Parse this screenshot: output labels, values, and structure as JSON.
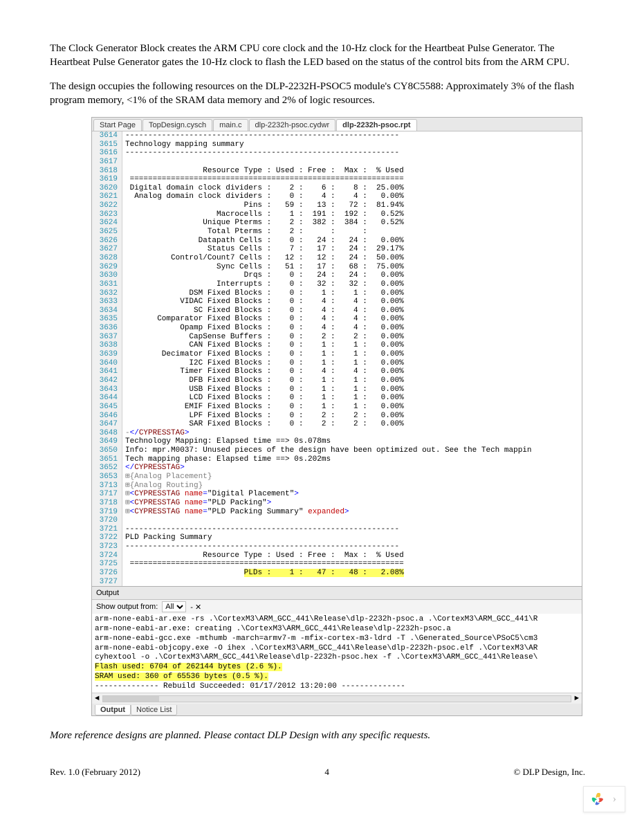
{
  "paragraph1": "The Clock Generator Block creates the ARM CPU core clock and the 10-Hz clock for the Heartbeat Pulse Generator.  The Heartbeat Pulse Generator gates the 10-Hz clock to flash the LED based on the status of the control bits from the ARM CPU.",
  "paragraph2": "The design occupies the following resources on the DLP-2232H-PSOC5 module's CY8C5588: Approximately 3% of the flash program memory, <1% of the SRAM data memory and 2% of logic resources.",
  "tabs": [
    "Start Page",
    "TopDesign.cysch",
    "main.c",
    "dlp-2232h-psoc.cydwr",
    "dlp-2232h-psoc.rpt"
  ],
  "active_tab_index": 4,
  "code_lines": [
    {
      "n": "3614",
      "t": "------------------------------------------------------------",
      "cls": ""
    },
    {
      "n": "3615",
      "t": "Technology mapping summary",
      "cls": ""
    },
    {
      "n": "3616",
      "t": "------------------------------------------------------------",
      "cls": ""
    },
    {
      "n": "3617",
      "t": "",
      "cls": ""
    },
    {
      "n": "3618",
      "t": "                 Resource Type : Used : Free :  Max :  % Used",
      "cls": ""
    },
    {
      "n": "3619",
      "t": " ============================================================",
      "cls": ""
    },
    {
      "n": "3620",
      "t": " Digital domain clock dividers :    2 :    6 :    8 :  25.00%",
      "cls": ""
    },
    {
      "n": "3621",
      "t": "  Analog domain clock dividers :    0 :    4 :    4 :   0.00%",
      "cls": ""
    },
    {
      "n": "3622",
      "t": "                          Pins :   59 :   13 :   72 :  81.94%",
      "cls": ""
    },
    {
      "n": "3623",
      "t": "                    Macrocells :    1 :  191 :  192 :   0.52%",
      "cls": ""
    },
    {
      "n": "3624",
      "t": "                 Unique Pterms :    2 :  382 :  384 :   0.52%",
      "cls": ""
    },
    {
      "n": "3625",
      "t": "                  Total Pterms :    2 :      :      :",
      "cls": ""
    },
    {
      "n": "3626",
      "t": "                Datapath Cells :    0 :   24 :   24 :   0.00%",
      "cls": ""
    },
    {
      "n": "3627",
      "t": "                  Status Cells :    7 :   17 :   24 :  29.17%",
      "cls": ""
    },
    {
      "n": "3628",
      "t": "          Control/Count7 Cells :   12 :   12 :   24 :  50.00%",
      "cls": ""
    },
    {
      "n": "3629",
      "t": "                    Sync Cells :   51 :   17 :   68 :  75.00%",
      "cls": ""
    },
    {
      "n": "3630",
      "t": "                          Drqs :    0 :   24 :   24 :   0.00%",
      "cls": ""
    },
    {
      "n": "3631",
      "t": "                    Interrupts :    0 :   32 :   32 :   0.00%",
      "cls": ""
    },
    {
      "n": "3632",
      "t": "              DSM Fixed Blocks :    0 :    1 :    1 :   0.00%",
      "cls": ""
    },
    {
      "n": "3633",
      "t": "            VIDAC Fixed Blocks :    0 :    4 :    4 :   0.00%",
      "cls": ""
    },
    {
      "n": "3634",
      "t": "               SC Fixed Blocks :    0 :    4 :    4 :   0.00%",
      "cls": ""
    },
    {
      "n": "3635",
      "t": "       Comparator Fixed Blocks :    0 :    4 :    4 :   0.00%",
      "cls": ""
    },
    {
      "n": "3636",
      "t": "            Opamp Fixed Blocks :    0 :    4 :    4 :   0.00%",
      "cls": ""
    },
    {
      "n": "3637",
      "t": "              CapSense Buffers :    0 :    2 :    2 :   0.00%",
      "cls": ""
    },
    {
      "n": "3638",
      "t": "              CAN Fixed Blocks :    0 :    1 :    1 :   0.00%",
      "cls": ""
    },
    {
      "n": "3639",
      "t": "        Decimator Fixed Blocks :    0 :    1 :    1 :   0.00%",
      "cls": ""
    },
    {
      "n": "3640",
      "t": "              I2C Fixed Blocks :    0 :    1 :    1 :   0.00%",
      "cls": ""
    },
    {
      "n": "3641",
      "t": "            Timer Fixed Blocks :    0 :    4 :    4 :   0.00%",
      "cls": ""
    },
    {
      "n": "3642",
      "t": "              DFB Fixed Blocks :    0 :    1 :    1 :   0.00%",
      "cls": ""
    },
    {
      "n": "3643",
      "t": "              USB Fixed Blocks :    0 :    1 :    1 :   0.00%",
      "cls": ""
    },
    {
      "n": "3644",
      "t": "              LCD Fixed Blocks :    0 :    1 :    1 :   0.00%",
      "cls": ""
    },
    {
      "n": "3645",
      "t": "             EMIF Fixed Blocks :    0 :    1 :    1 :   0.00%",
      "cls": ""
    },
    {
      "n": "3646",
      "t": "              LPF Fixed Blocks :    0 :    2 :    2 :   0.00%",
      "cls": ""
    },
    {
      "n": "3647",
      "t": "              SAR Fixed Blocks :    0 :    2 :    2 :   0.00%",
      "cls": ""
    }
  ],
  "xml_lines": [
    {
      "n": "3648",
      "html": "<span class='gray'>-</span><span class='blue'>&lt;/</span><span class='maroon'>CYPRESSTAG</span><span class='blue'>&gt;</span>"
    },
    {
      "n": "3649",
      "html": "Technology Mapping: Elapsed time ==&gt; 0s.078ms"
    },
    {
      "n": "3650",
      "html": "Info: mpr.M0037: Unused pieces of the design have been optimized out. See the Tech mappin"
    },
    {
      "n": "3651",
      "html": "Tech mapping phase: Elapsed time ==&gt; 0s.202ms"
    },
    {
      "n": "3652",
      "html": "<span class='blue'>&lt;/</span><span class='maroon'>CYPRESSTAG</span><span class='blue'>&gt;</span>"
    },
    {
      "n": "3653",
      "html": "<span class='gray'>⊞{Analog Placement}</span>"
    },
    {
      "n": "3713",
      "html": "<span class='gray'>⊞{Analog Routing}</span>"
    },
    {
      "n": "3717",
      "html": "<span class='gray'>⊞</span><span class='blue'>&lt;</span><span class='maroon'>CYPRESSTAG</span> <span class='red'>name</span><span class='blue'>=</span>&quot;Digital Placement&quot;<span class='blue'>&gt;</span>"
    },
    {
      "n": "3718",
      "html": "<span class='gray'>⊞</span><span class='blue'>&lt;</span><span class='maroon'>CYPRESSTAG</span> <span class='red'>name</span><span class='blue'>=</span>&quot;PLD Packing&quot;<span class='blue'>&gt;</span>"
    },
    {
      "n": "3719",
      "html": "<span class='gray'>⊞</span><span class='blue'>&lt;</span><span class='maroon'>CYPRESSTAG</span> <span class='red'>name</span><span class='blue'>=</span>&quot;PLD Packing Summary&quot; <span class='red'>expanded</span><span class='blue'>&gt;</span>"
    },
    {
      "n": "3720",
      "html": ""
    },
    {
      "n": "3721",
      "html": "------------------------------------------------------------"
    },
    {
      "n": "3722",
      "html": "PLD Packing Summary"
    },
    {
      "n": "3723",
      "html": "------------------------------------------------------------"
    },
    {
      "n": "3724",
      "html": "                 Resource Type : Used : Free :  Max :  % Used"
    },
    {
      "n": "3725",
      "html": " ============================================================"
    },
    {
      "n": "3726",
      "html": "                          <span class='hl-yellow'>PLDs :    1 :   47 :   48 :   2.08%</span>"
    },
    {
      "n": "3727",
      "html": ""
    }
  ],
  "output_header": "Output",
  "output_label": "Show output from:",
  "output_select": "All",
  "output_lines": [
    {
      "t": "arm-none-eabi-ar.exe -rs .\\CortexM3\\ARM_GCC_441\\Release\\dlp-2232h-psoc.a .\\CortexM3\\ARM_GCC_441\\R",
      "hl": false
    },
    {
      "t": "arm-none-eabi-ar.exe: creating .\\CortexM3\\ARM_GCC_441\\Release\\dlp-2232h-psoc.a",
      "hl": false
    },
    {
      "t": "arm-none-eabi-gcc.exe -mthumb -march=armv7-m -mfix-cortex-m3-ldrd -T .\\Generated_Source\\PSoC5\\cm3",
      "hl": false
    },
    {
      "t": "arm-none-eabi-objcopy.exe -O ihex .\\CortexM3\\ARM_GCC_441\\Release\\dlp-2232h-psoc.elf .\\CortexM3\\AR",
      "hl": false
    },
    {
      "t": "cyhextool -o .\\CortexM3\\ARM_GCC_441\\Release\\dlp-2232h-psoc.hex -f .\\CortexM3\\ARM_GCC_441\\Release\\",
      "hl": false
    },
    {
      "t": "Flash used: 6704 of 262144 bytes (2.6 %).",
      "hl": true
    },
    {
      "t": "SRAM used: 360 of 65536 bytes (0.5 %).",
      "hl": true
    },
    {
      "t": "-------------- Rebuild Succeeded: 01/17/2012 13:20:00 --------------",
      "hl": false
    }
  ],
  "out_tabs": [
    "Output",
    "Notice List"
  ],
  "italic_note": "More reference designs are planned.  Please contact DLP Design with any specific requests.",
  "footer_left": "Rev. 1.0 (February 2012)",
  "footer_center": "4",
  "footer_right": "© DLP Design, Inc.",
  "colors": {
    "highlight": "#ffff66",
    "line_number": "#2b91af",
    "gray": "#808080",
    "maroon": "#800000",
    "red": "#c00000",
    "blue": "#0000ff"
  }
}
